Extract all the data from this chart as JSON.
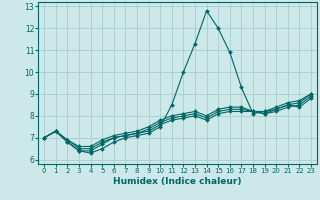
{
  "xlabel": "Humidex (Indice chaleur)",
  "xlim": [
    -0.5,
    23.5
  ],
  "ylim": [
    5.8,
    13.2
  ],
  "yticks": [
    6,
    7,
    8,
    9,
    10,
    11,
    12,
    13
  ],
  "xticks": [
    0,
    1,
    2,
    3,
    4,
    5,
    6,
    7,
    8,
    9,
    10,
    11,
    12,
    13,
    14,
    15,
    16,
    17,
    18,
    19,
    20,
    21,
    22,
    23
  ],
  "background_color": "#cce8e8",
  "grid_color": "#aacccc",
  "line_color": "#006666",
  "lines": [
    [
      7.0,
      7.3,
      6.8,
      6.4,
      6.3,
      6.5,
      6.8,
      7.0,
      7.1,
      7.2,
      7.5,
      8.5,
      10.0,
      11.3,
      12.8,
      12.0,
      10.9,
      9.3,
      8.1,
      8.2,
      8.4,
      8.6,
      8.7,
      9.0
    ],
    [
      7.0,
      7.3,
      6.8,
      6.4,
      6.4,
      6.7,
      7.0,
      7.1,
      7.2,
      7.3,
      7.6,
      7.8,
      7.9,
      8.0,
      7.8,
      8.1,
      8.2,
      8.2,
      8.2,
      8.2,
      8.3,
      8.5,
      8.4,
      8.8
    ],
    [
      7.0,
      7.3,
      6.9,
      6.5,
      6.5,
      6.8,
      7.0,
      7.1,
      7.2,
      7.4,
      7.7,
      7.9,
      8.0,
      8.1,
      7.9,
      8.2,
      8.3,
      8.3,
      8.2,
      8.1,
      8.3,
      8.5,
      8.6,
      9.0
    ],
    [
      7.0,
      7.3,
      6.9,
      6.6,
      6.6,
      6.9,
      7.1,
      7.2,
      7.3,
      7.5,
      7.8,
      8.0,
      8.1,
      8.2,
      8.0,
      8.3,
      8.4,
      8.4,
      8.2,
      8.1,
      8.2,
      8.4,
      8.5,
      8.9
    ]
  ]
}
